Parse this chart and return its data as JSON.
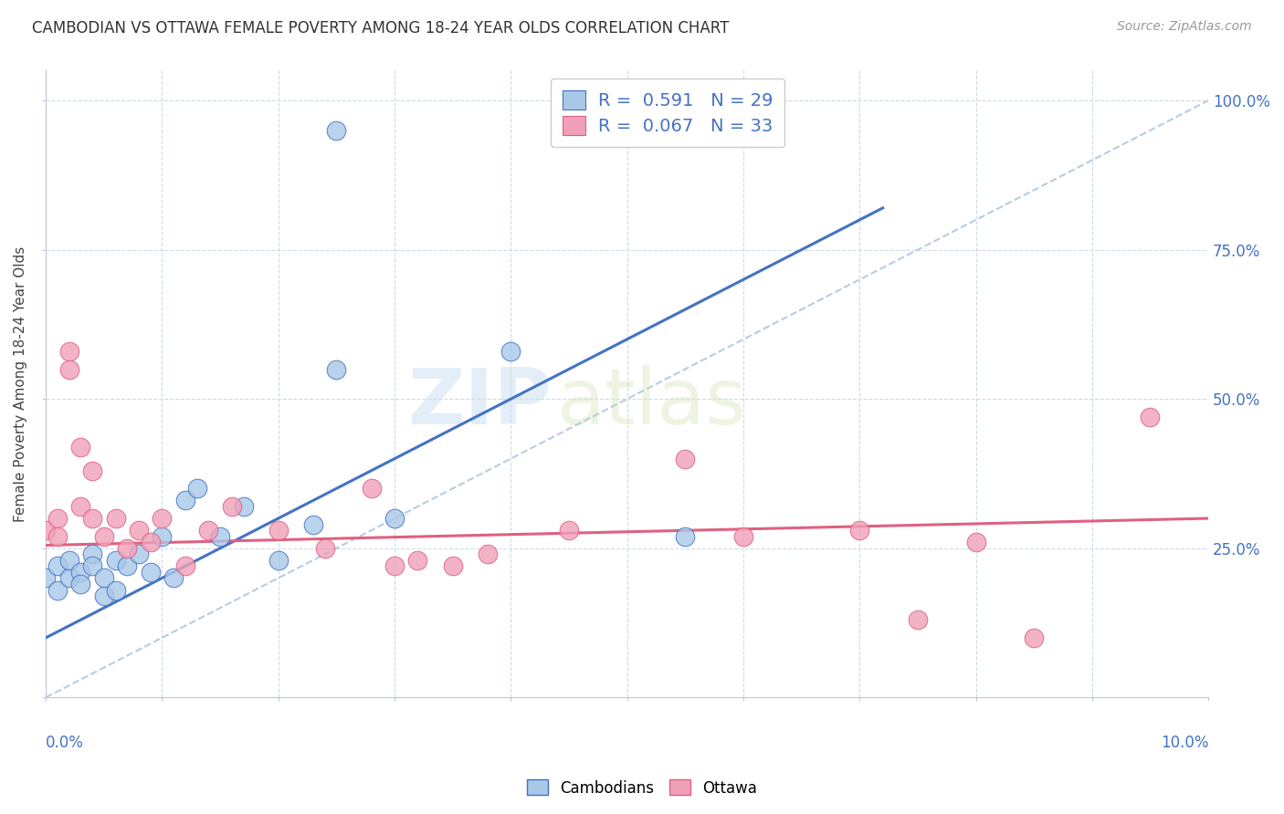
{
  "title": "CAMBODIAN VS OTTAWA FEMALE POVERTY AMONG 18-24 YEAR OLDS CORRELATION CHART",
  "source": "Source: ZipAtlas.com",
  "ylabel": "Female Poverty Among 18-24 Year Olds",
  "y_right_labels": [
    "",
    "25.0%",
    "50.0%",
    "75.0%",
    "100.0%"
  ],
  "legend_r1": "R =  0.591   N = 29",
  "legend_r2": "R =  0.067   N = 33",
  "legend_label1": "Cambodians",
  "legend_label2": "Ottawa",
  "cambodian_color": "#a8c8e8",
  "ottawa_color": "#f0a0b8",
  "blue_line_color": "#4472c4",
  "pink_line_color": "#e06080",
  "ref_line_color": "#b8cce0",
  "background_color": "#ffffff",
  "watermark_zip": "ZIP",
  "watermark_atlas": "atlas",
  "camb_x": [
    0.0,
    0.001,
    0.001,
    0.002,
    0.002,
    0.003,
    0.003,
    0.004,
    0.004,
    0.005,
    0.005,
    0.006,
    0.006,
    0.007,
    0.008,
    0.009,
    0.01,
    0.011,
    0.012,
    0.013,
    0.015,
    0.017,
    0.02,
    0.023,
    0.025,
    0.03,
    0.04,
    0.055,
    0.025
  ],
  "camb_y": [
    0.2,
    0.18,
    0.22,
    0.2,
    0.23,
    0.21,
    0.19,
    0.24,
    0.22,
    0.17,
    0.2,
    0.23,
    0.18,
    0.22,
    0.24,
    0.21,
    0.27,
    0.2,
    0.33,
    0.35,
    0.27,
    0.32,
    0.23,
    0.29,
    0.55,
    0.3,
    0.58,
    0.27,
    0.95
  ],
  "ott_x": [
    0.0,
    0.001,
    0.001,
    0.002,
    0.002,
    0.003,
    0.003,
    0.004,
    0.004,
    0.005,
    0.006,
    0.007,
    0.008,
    0.009,
    0.01,
    0.012,
    0.014,
    0.016,
    0.02,
    0.024,
    0.028,
    0.03,
    0.032,
    0.035,
    0.038,
    0.045,
    0.055,
    0.06,
    0.07,
    0.075,
    0.08,
    0.085,
    0.095
  ],
  "ott_y": [
    0.28,
    0.3,
    0.27,
    0.58,
    0.55,
    0.42,
    0.32,
    0.38,
    0.3,
    0.27,
    0.3,
    0.25,
    0.28,
    0.26,
    0.3,
    0.22,
    0.28,
    0.32,
    0.28,
    0.25,
    0.35,
    0.22,
    0.23,
    0.22,
    0.24,
    0.28,
    0.4,
    0.27,
    0.28,
    0.13,
    0.26,
    0.1,
    0.47
  ],
  "blue_line_x": [
    0.0,
    0.072
  ],
  "blue_line_y": [
    0.1,
    0.82
  ],
  "pink_line_x": [
    0.0,
    0.1
  ],
  "pink_line_y": [
    0.255,
    0.3
  ],
  "ref_line_x": [
    0.0,
    0.1
  ],
  "ref_line_y": [
    0.0,
    1.0
  ],
  "xmin": 0.0,
  "xmax": 0.1,
  "ymin": 0.0,
  "ymax": 1.05
}
